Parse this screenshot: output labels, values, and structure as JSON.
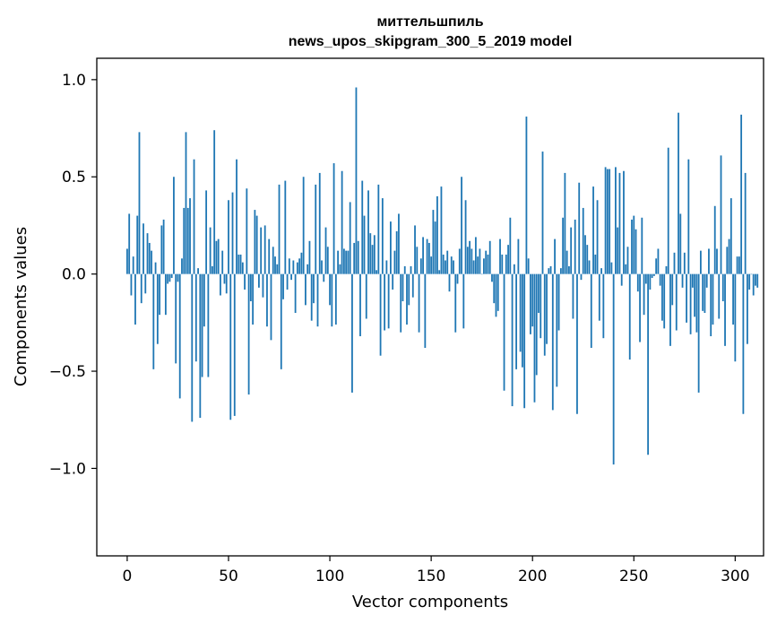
{
  "chart_data": {
    "type": "bar",
    "title": "миттельшпиль",
    "subtitle": "news_upos_skipgram_300_5_2019 model",
    "xlabel": "Vector components",
    "ylabel": "Components values",
    "xlim": [
      -15,
      314
    ],
    "ylim": [
      -1.45,
      1.11
    ],
    "xticks": [
      0,
      50,
      100,
      150,
      200,
      250,
      300
    ],
    "yticks": [
      -1.0,
      -0.5,
      0.0,
      0.5,
      1.0
    ],
    "ytick_labels": [
      "−1.0",
      "−0.5",
      "0.0",
      "0.5",
      "1.0"
    ],
    "bar_color": "#1f77b4",
    "values": [
      0.13,
      0.31,
      -0.11,
      0.09,
      -0.26,
      0.3,
      0.73,
      -0.15,
      0.26,
      -0.1,
      0.21,
      0.16,
      0.12,
      -0.49,
      0.06,
      -0.36,
      -0.21,
      0.25,
      0.28,
      -0.21,
      -0.05,
      -0.04,
      -0.02,
      0.5,
      -0.46,
      -0.04,
      -0.64,
      0.08,
      0.34,
      0.73,
      0.34,
      0.39,
      -0.76,
      0.59,
      -0.45,
      0.03,
      -0.74,
      -0.53,
      -0.27,
      0.43,
      -0.53,
      0.24,
      0.04,
      0.74,
      0.17,
      0.18,
      -0.11,
      0.12,
      -0.05,
      -0.1,
      0.38,
      -0.75,
      0.42,
      -0.73,
      0.59,
      0.1,
      0.1,
      0.06,
      -0.08,
      0.44,
      -0.62,
      -0.14,
      -0.26,
      0.33,
      0.3,
      -0.07,
      0.24,
      -0.12,
      0.25,
      -0.27,
      0.18,
      -0.34,
      0.14,
      0.09,
      0.05,
      0.46,
      -0.49,
      -0.13,
      0.48,
      -0.08,
      0.08,
      -0.03,
      0.07,
      -0.2,
      0.06,
      0.08,
      0.11,
      0.5,
      -0.16,
      0.05,
      0.17,
      -0.24,
      -0.15,
      0.46,
      -0.27,
      0.52,
      0.07,
      -0.04,
      0.24,
      0.14,
      -0.16,
      -0.27,
      0.57,
      -0.26,
      0.12,
      0.05,
      0.53,
      0.13,
      0.12,
      0.12,
      0.37,
      -0.61,
      0.16,
      0.96,
      0.17,
      -0.32,
      0.48,
      0.3,
      -0.23,
      0.43,
      0.21,
      0.15,
      0.2,
      0.02,
      0.46,
      -0.42,
      0.39,
      -0.29,
      0.07,
      -0.28,
      0.27,
      -0.08,
      0.12,
      0.22,
      0.31,
      -0.3,
      -0.14,
      0.04,
      -0.26,
      -0.16,
      0.04,
      -0.12,
      0.25,
      0.14,
      -0.3,
      0.08,
      0.19,
      -0.38,
      0.18,
      0.16,
      0.09,
      0.33,
      0.27,
      0.4,
      0.02,
      0.45,
      0.1,
      0.07,
      0.12,
      -0.09,
      0.09,
      0.07,
      -0.3,
      -0.05,
      0.13,
      0.5,
      -0.28,
      0.38,
      0.14,
      0.17,
      0.13,
      0.07,
      0.19,
      0.09,
      0.13,
      0.0,
      0.08,
      0.12,
      0.1,
      0.17,
      -0.04,
      -0.15,
      -0.22,
      -0.19,
      0.18,
      0.1,
      -0.6,
      0.1,
      0.15,
      0.29,
      -0.68,
      0.05,
      -0.49,
      0.18,
      -0.4,
      -0.48,
      -0.69,
      0.81,
      0.08,
      -0.31,
      -0.27,
      -0.66,
      -0.52,
      -0.2,
      -0.33,
      0.63,
      -0.42,
      -0.36,
      0.03,
      0.04,
      -0.7,
      0.18,
      -0.58,
      -0.29,
      0.03,
      0.29,
      0.52,
      0.12,
      0.04,
      0.24,
      -0.23,
      0.28,
      -0.72,
      0.47,
      -0.03,
      0.34,
      0.2,
      0.15,
      0.07,
      -0.38,
      0.45,
      0.1,
      0.38,
      -0.24,
      0.03,
      -0.33,
      0.55,
      0.54,
      0.54,
      0.06,
      -0.98,
      0.55,
      0.24,
      0.52,
      -0.06,
      0.53,
      0.05,
      0.14,
      -0.44,
      0.28,
      0.3,
      0.23,
      -0.09,
      -0.35,
      0.29,
      -0.21,
      -0.05,
      -0.93,
      -0.08,
      -0.02,
      -0.01,
      0.08,
      0.13,
      -0.06,
      -0.24,
      -0.28,
      0.04,
      0.65,
      -0.37,
      -0.16,
      0.11,
      -0.29,
      0.83,
      0.31,
      -0.07,
      0.11,
      -0.25,
      0.59,
      -0.31,
      -0.07,
      -0.22,
      -0.3,
      -0.61,
      0.12,
      -0.19,
      -0.2,
      -0.07,
      0.13,
      -0.32,
      -0.26,
      0.35,
      0.13,
      -0.23,
      0.61,
      -0.14,
      -0.37,
      0.14,
      0.18,
      0.39,
      -0.26,
      -0.45,
      0.09,
      0.09,
      0.82,
      -0.72,
      0.52,
      -0.36,
      -0.08,
      0.0,
      -0.11,
      -0.06,
      -0.07
    ]
  }
}
